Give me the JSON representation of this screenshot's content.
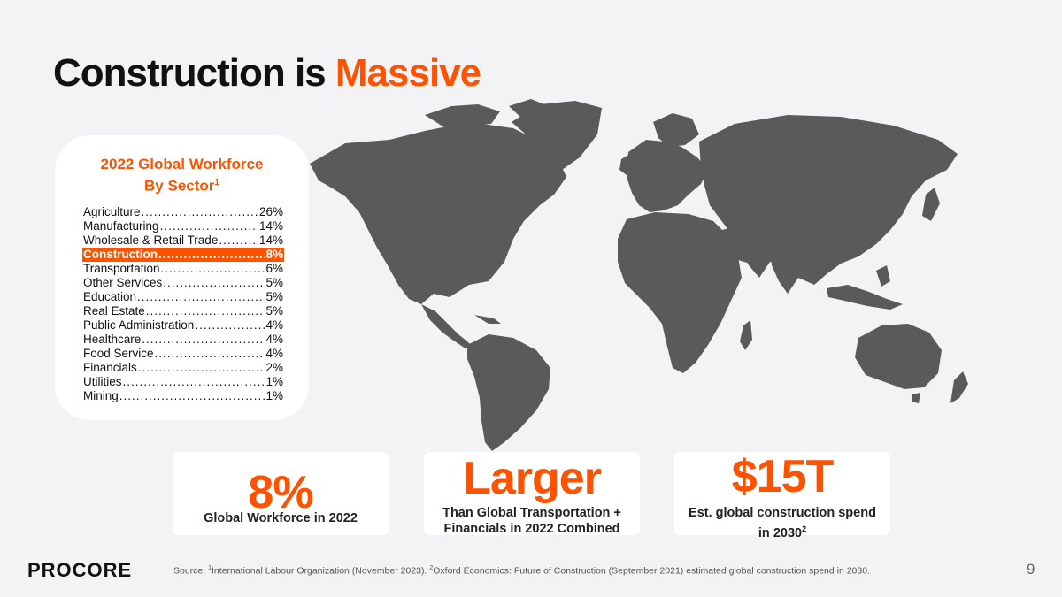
{
  "slide": {
    "title_main": "Construction is ",
    "title_accent": "Massive",
    "colors": {
      "accent": "#ff5200",
      "map": "#5a5a5a",
      "background": "#f3f3f5"
    }
  },
  "workforce_card": {
    "title_line1": "2022 Global Workforce",
    "title_line2": "By Sector",
    "title_footnote": "1",
    "sectors": [
      {
        "label": "Agriculture",
        "value": "26%"
      },
      {
        "label": "Manufacturing",
        "value": "14%"
      },
      {
        "label": "Wholesale & Retail Trade",
        "value": "14%"
      },
      {
        "label": "Construction",
        "value": "8%",
        "highlighted": true
      },
      {
        "label": "Transportation",
        "value": "6%"
      },
      {
        "label": "Other Services",
        "value": "5%"
      },
      {
        "label": "Education",
        "value": "5%"
      },
      {
        "label": "Real Estate",
        "value": "5%"
      },
      {
        "label": "Public Administration",
        "value": "4%"
      },
      {
        "label": "Healthcare",
        "value": "4%"
      },
      {
        "label": "Food Service",
        "value": "4%"
      },
      {
        "label": "Financials",
        "value": "2%"
      },
      {
        "label": "Utilities",
        "value": "1%"
      },
      {
        "label": "Mining",
        "value": "1%"
      }
    ]
  },
  "stats": [
    {
      "big": "8%",
      "desc": "Global Workforce in 2022"
    },
    {
      "big": "Larger",
      "desc_line1": "Than Global Transportation +",
      "desc_line2": "Financials in 2022 Combined"
    },
    {
      "big": "$15T",
      "desc_line1": "Est. global construction spend",
      "desc_line2": "in 2030",
      "footnote": "2"
    }
  ],
  "footer": {
    "logo": "PROCORE",
    "source_prefix": "Source: ",
    "source_fn1": "1",
    "source_text1": "International Labour Organization (November 2023).  ",
    "source_fn2": "2",
    "source_text2": "Oxford Economics: Future of Construction (September 2021) estimated global construction spend in 2030.",
    "page_number": "9"
  }
}
